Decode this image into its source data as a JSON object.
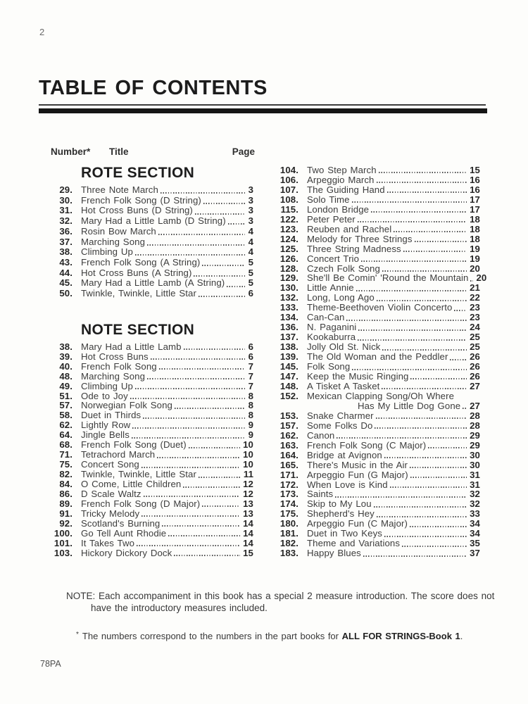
{
  "page_number": "2",
  "title": "TABLE OF CONTENTS",
  "headers": {
    "number": "Number*",
    "title": "Title",
    "page": "Page"
  },
  "sections": {
    "rote": {
      "heading": "ROTE SECTION",
      "entries": [
        {
          "num": "29.",
          "title": "Three Note March",
          "page": "3"
        },
        {
          "num": "30.",
          "title": "French Folk Song (D String)",
          "page": "3"
        },
        {
          "num": "31.",
          "title": "Hot Cross Buns (D String)",
          "page": "3"
        },
        {
          "num": "32.",
          "title": "Mary Had a Little Lamb (D String)",
          "page": "3"
        },
        {
          "num": "36.",
          "title": "Rosin Bow March",
          "page": "4"
        },
        {
          "num": "37.",
          "title": "Marching Song",
          "page": "4"
        },
        {
          "num": "38.",
          "title": "Climbing Up",
          "page": "4"
        },
        {
          "num": "43.",
          "title": "French Folk Song (A String)",
          "page": "5"
        },
        {
          "num": "44.",
          "title": "Hot Cross Buns (A String)",
          "page": "5"
        },
        {
          "num": "45.",
          "title": "Mary Had a Little Lamb (A String)",
          "page": "5"
        },
        {
          "num": "50.",
          "title": "Twinkle, Twinkle, Little Star",
          "page": "6"
        }
      ]
    },
    "note": {
      "heading": "NOTE SECTION",
      "entries": [
        {
          "num": "38.",
          "title": "Mary Had a Little Lamb",
          "page": "6"
        },
        {
          "num": "39.",
          "title": "Hot Cross Buns",
          "page": "6"
        },
        {
          "num": "40.",
          "title": "French Folk Song",
          "page": "7"
        },
        {
          "num": "48.",
          "title": "Marching Song",
          "page": "7"
        },
        {
          "num": "49.",
          "title": "Climbing Up",
          "page": "7"
        },
        {
          "num": "51.",
          "title": "Ode to Joy",
          "page": "8"
        },
        {
          "num": "57.",
          "title": "Norwegian Folk Song",
          "page": "8"
        },
        {
          "num": "58.",
          "title": "Duet in Thirds",
          "page": "8"
        },
        {
          "num": "62.",
          "title": "Lightly Row",
          "page": "9"
        },
        {
          "num": "64.",
          "title": "Jingle Bells",
          "page": "9"
        },
        {
          "num": "68.",
          "title": "French Folk Song (Duet)",
          "page": "10"
        },
        {
          "num": "71.",
          "title": "Tetrachord March",
          "page": "10"
        },
        {
          "num": "75.",
          "title": "Concert Song",
          "page": "10"
        },
        {
          "num": "82.",
          "title": "Twinkle, Twinkle, Little Star",
          "page": "11"
        },
        {
          "num": "84.",
          "title": "O Come, Little Children",
          "page": "12"
        },
        {
          "num": "86.",
          "title": "D Scale Waltz",
          "page": "12"
        },
        {
          "num": "89.",
          "title": "French Folk Song (D Major)",
          "page": "13"
        },
        {
          "num": "91.",
          "title": "Tricky Melody",
          "page": "13"
        },
        {
          "num": "92.",
          "title": "Scotland's Burning",
          "page": "14"
        },
        {
          "num": "100.",
          "title": "Go Tell Aunt Rhodie",
          "page": "14"
        },
        {
          "num": "101.",
          "title": "It Takes Two",
          "page": "14"
        },
        {
          "num": "103.",
          "title": "Hickory Dickory Dock",
          "page": "15"
        }
      ]
    }
  },
  "right_column": {
    "entries": [
      {
        "num": "104.",
        "title": "Two Step March",
        "page": "15"
      },
      {
        "num": "106.",
        "title": "Arpeggio March",
        "page": "16"
      },
      {
        "num": "107.",
        "title": "The Guiding Hand",
        "page": "16"
      },
      {
        "num": "108.",
        "title": "Solo Time",
        "page": "17"
      },
      {
        "num": "115.",
        "title": "London Bridge",
        "page": "17"
      },
      {
        "num": "122.",
        "title": "Peter Peter",
        "page": "18"
      },
      {
        "num": "123.",
        "title": "Reuben and Rachel",
        "page": "18"
      },
      {
        "num": "124.",
        "title": "Melody for Three Strings",
        "page": "18"
      },
      {
        "num": "125.",
        "title": "Three String Madness",
        "page": "19"
      },
      {
        "num": "126.",
        "title": "Concert Trio",
        "page": "19"
      },
      {
        "num": "128.",
        "title": "Czech Folk Song",
        "page": "20"
      },
      {
        "num": "129.",
        "title": "She'll Be Comin' 'Round the Mountain",
        "page": "20"
      },
      {
        "num": "130.",
        "title": "Little Annie",
        "page": "21"
      },
      {
        "num": "132.",
        "title": "Long, Long Ago",
        "page": "22"
      },
      {
        "num": "133.",
        "title": "Theme-Beethoven Violin Concerto",
        "page": "23"
      },
      {
        "num": "134.",
        "title": "Can-Can",
        "page": "23"
      },
      {
        "num": "136.",
        "title": "N. Paganini",
        "page": "24"
      },
      {
        "num": "137.",
        "title": "Kookaburra",
        "page": "25"
      },
      {
        "num": "138.",
        "title": "Jolly Old St. Nick",
        "page": "25"
      },
      {
        "num": "139.",
        "title": "The Old Woman and the Peddler",
        "page": "26"
      },
      {
        "num": "145.",
        "title": "Folk Song",
        "page": "26"
      },
      {
        "num": "147.",
        "title": "Keep the Music Ringing",
        "page": "26"
      },
      {
        "num": "148.",
        "title": "A Tisket A Tasket",
        "page": "27"
      },
      {
        "num": "152.",
        "title": "Mexican Clapping Song/Oh Where",
        "title2": "Has My Little Dog Gone",
        "page": "27"
      },
      {
        "num": "153.",
        "title": "Snake Charmer",
        "page": "28"
      },
      {
        "num": "157.",
        "title": "Some Folks Do",
        "page": "28"
      },
      {
        "num": "162.",
        "title": "Canon",
        "page": "29"
      },
      {
        "num": "163.",
        "title": "French Folk Song (C Major)",
        "page": "29"
      },
      {
        "num": "164.",
        "title": "Bridge at Avignon",
        "page": "30"
      },
      {
        "num": "165.",
        "title": "There's Music in the Air",
        "page": "30"
      },
      {
        "num": "171.",
        "title": "Arpeggio Fun (G Major)",
        "page": "31"
      },
      {
        "num": "172.",
        "title": "When Love is Kind",
        "page": "31"
      },
      {
        "num": "173.",
        "title": "Saints",
        "page": "32"
      },
      {
        "num": "174.",
        "title": "Skip to My Lou",
        "page": "32"
      },
      {
        "num": "175.",
        "title": "Shepherd's Hey",
        "page": "33"
      },
      {
        "num": "180.",
        "title": "Arpeggio Fun (C Major)",
        "page": "34"
      },
      {
        "num": "181.",
        "title": "Duet in Two Keys",
        "page": "34"
      },
      {
        "num": "182.",
        "title": "Theme and Variations",
        "page": "35"
      },
      {
        "num": "183.",
        "title": "Happy Blues",
        "page": "37"
      }
    ]
  },
  "note": {
    "label": "NOTE:",
    "line1": "Each accompaniment in this book has a special 2 measure introduction. The score does not",
    "line2": "have the introductory measures included."
  },
  "footnote": {
    "star": "*",
    "text": "The numbers correspond to the numbers in the part books for ",
    "bold": "ALL FOR STRINGS-Book 1",
    "period": "."
  },
  "footer_code": "78PA"
}
